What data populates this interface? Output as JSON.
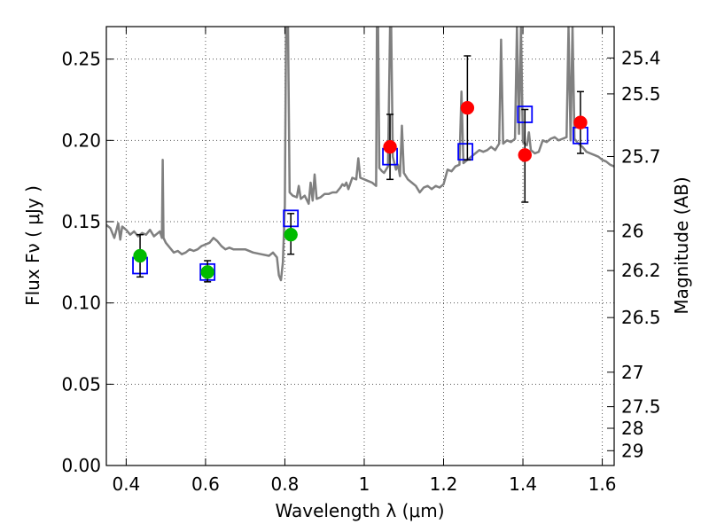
{
  "chart_data": {
    "type": "scatter",
    "title": "",
    "xlabel": "Wavelength  λ (μm)",
    "ylabel": "Flux  Fν  ( μJy )",
    "ylabel_right": "Magnitude (AB)",
    "xlim": [
      0.35,
      1.63
    ],
    "ylim": [
      0.0,
      0.27
    ],
    "grid": true,
    "grid_style": "dotted",
    "x_ticks": [
      0.4,
      0.6,
      0.8,
      1.0,
      1.2,
      1.4,
      1.6
    ],
    "x_tick_labels": [
      "0.4",
      "0.6",
      "0.8",
      "1",
      "1.2",
      "1.4",
      "1.6"
    ],
    "y_ticks": [
      0.0,
      0.05,
      0.1,
      0.15,
      0.2,
      0.25
    ],
    "y_tick_labels": [
      "0.00",
      "0.05",
      "0.10",
      "0.15",
      "0.20",
      "0.25"
    ],
    "right_axis": {
      "label": "Magnitude (AB)",
      "ticks": [
        {
          "text": "25.4",
          "flux": 0.2507
        },
        {
          "text": "25.5",
          "flux": 0.2286
        },
        {
          "text": "25.7",
          "flux": 0.1901
        },
        {
          "text": "26",
          "flux": 0.1442
        },
        {
          "text": "26.2",
          "flux": 0.1199
        },
        {
          "text": "26.5",
          "flux": 0.091
        },
        {
          "text": "27",
          "flux": 0.0574
        },
        {
          "text": "27.5",
          "flux": 0.0362
        },
        {
          "text": "28",
          "flux": 0.0229
        },
        {
          "text": "29",
          "flux": 0.0091
        }
      ]
    },
    "colors": {
      "spectrum": "#808080",
      "model_box": "#0000ff",
      "green_point": "#00bb00",
      "red_point": "#ff0000",
      "error_bar": "#000000",
      "grid": "#555555"
    },
    "series": [
      {
        "type": "line",
        "points": [
          [
            0.35,
            0.148
          ],
          [
            0.36,
            0.146
          ],
          [
            0.37,
            0.14
          ],
          [
            0.38,
            0.149
          ],
          [
            0.385,
            0.139
          ],
          [
            0.39,
            0.147
          ],
          [
            0.4,
            0.145
          ],
          [
            0.41,
            0.142
          ],
          [
            0.42,
            0.144
          ],
          [
            0.43,
            0.141
          ],
          [
            0.44,
            0.143
          ],
          [
            0.45,
            0.142
          ],
          [
            0.46,
            0.145
          ],
          [
            0.47,
            0.141
          ],
          [
            0.48,
            0.143
          ],
          [
            0.485,
            0.144
          ],
          [
            0.49,
            0.14
          ],
          [
            0.492,
            0.188
          ],
          [
            0.494,
            0.14
          ],
          [
            0.5,
            0.137
          ],
          [
            0.51,
            0.134
          ],
          [
            0.52,
            0.131
          ],
          [
            0.53,
            0.132
          ],
          [
            0.54,
            0.13
          ],
          [
            0.55,
            0.131
          ],
          [
            0.56,
            0.133
          ],
          [
            0.57,
            0.132
          ],
          [
            0.58,
            0.133
          ],
          [
            0.59,
            0.135
          ],
          [
            0.6,
            0.136
          ],
          [
            0.61,
            0.137
          ],
          [
            0.62,
            0.14
          ],
          [
            0.63,
            0.138
          ],
          [
            0.64,
            0.135
          ],
          [
            0.65,
            0.133
          ],
          [
            0.66,
            0.134
          ],
          [
            0.67,
            0.133
          ],
          [
            0.68,
            0.133
          ],
          [
            0.7,
            0.133
          ],
          [
            0.72,
            0.131
          ],
          [
            0.74,
            0.13
          ],
          [
            0.76,
            0.129
          ],
          [
            0.77,
            0.131
          ],
          [
            0.78,
            0.128
          ],
          [
            0.785,
            0.117
          ],
          [
            0.79,
            0.114
          ],
          [
            0.795,
            0.125
          ],
          [
            0.8,
            0.16
          ],
          [
            0.803,
            0.27
          ],
          [
            0.805,
            0.27
          ],
          [
            0.808,
            0.27
          ],
          [
            0.812,
            0.168
          ],
          [
            0.82,
            0.166
          ],
          [
            0.83,
            0.165
          ],
          [
            0.835,
            0.172
          ],
          [
            0.84,
            0.164
          ],
          [
            0.85,
            0.166
          ],
          [
            0.86,
            0.161
          ],
          [
            0.865,
            0.174
          ],
          [
            0.87,
            0.163
          ],
          [
            0.875,
            0.179
          ],
          [
            0.88,
            0.164
          ],
          [
            0.89,
            0.165
          ],
          [
            0.9,
            0.167
          ],
          [
            0.91,
            0.167
          ],
          [
            0.92,
            0.168
          ],
          [
            0.93,
            0.168
          ],
          [
            0.94,
            0.171
          ],
          [
            0.945,
            0.173
          ],
          [
            0.95,
            0.172
          ],
          [
            0.955,
            0.174
          ],
          [
            0.96,
            0.17
          ],
          [
            0.97,
            0.177
          ],
          [
            0.98,
            0.176
          ],
          [
            0.985,
            0.189
          ],
          [
            0.99,
            0.177
          ],
          [
            1.0,
            0.176
          ],
          [
            1.01,
            0.175
          ],
          [
            1.02,
            0.174
          ],
          [
            1.03,
            0.172
          ],
          [
            1.032,
            0.27
          ],
          [
            1.035,
            0.27
          ],
          [
            1.038,
            0.183
          ],
          [
            1.045,
            0.181
          ],
          [
            1.05,
            0.18
          ],
          [
            1.06,
            0.184
          ],
          [
            1.065,
            0.27
          ],
          [
            1.068,
            0.27
          ],
          [
            1.072,
            0.19
          ],
          [
            1.08,
            0.182
          ],
          [
            1.085,
            0.185
          ],
          [
            1.09,
            0.178
          ],
          [
            1.095,
            0.209
          ],
          [
            1.1,
            0.18
          ],
          [
            1.11,
            0.176
          ],
          [
            1.12,
            0.174
          ],
          [
            1.13,
            0.172
          ],
          [
            1.14,
            0.168
          ],
          [
            1.15,
            0.171
          ],
          [
            1.16,
            0.172
          ],
          [
            1.17,
            0.17
          ],
          [
            1.18,
            0.172
          ],
          [
            1.19,
            0.171
          ],
          [
            1.2,
            0.173
          ],
          [
            1.21,
            0.182
          ],
          [
            1.22,
            0.181
          ],
          [
            1.23,
            0.184
          ],
          [
            1.24,
            0.185
          ],
          [
            1.245,
            0.23
          ],
          [
            1.25,
            0.186
          ],
          [
            1.26,
            0.188
          ],
          [
            1.27,
            0.19
          ],
          [
            1.28,
            0.192
          ],
          [
            1.29,
            0.194
          ],
          [
            1.3,
            0.193
          ],
          [
            1.31,
            0.194
          ],
          [
            1.32,
            0.196
          ],
          [
            1.33,
            0.194
          ],
          [
            1.34,
            0.198
          ],
          [
            1.345,
            0.262
          ],
          [
            1.35,
            0.198
          ],
          [
            1.36,
            0.2
          ],
          [
            1.37,
            0.199
          ],
          [
            1.38,
            0.201
          ],
          [
            1.385,
            0.27
          ],
          [
            1.39,
            0.204
          ],
          [
            1.395,
            0.27
          ],
          [
            1.4,
            0.199
          ],
          [
            1.41,
            0.197
          ],
          [
            1.415,
            0.205
          ],
          [
            1.42,
            0.194
          ],
          [
            1.43,
            0.192
          ],
          [
            1.44,
            0.193
          ],
          [
            1.45,
            0.2
          ],
          [
            1.46,
            0.199
          ],
          [
            1.47,
            0.201
          ],
          [
            1.48,
            0.202
          ],
          [
            1.49,
            0.2
          ],
          [
            1.5,
            0.201
          ],
          [
            1.51,
            0.202
          ],
          [
            1.515,
            0.27
          ],
          [
            1.52,
            0.2
          ],
          [
            1.525,
            0.27
          ],
          [
            1.53,
            0.201
          ],
          [
            1.54,
            0.198
          ],
          [
            1.55,
            0.196
          ],
          [
            1.56,
            0.193
          ],
          [
            1.57,
            0.192
          ],
          [
            1.58,
            0.191
          ],
          [
            1.59,
            0.19
          ],
          [
            1.6,
            0.188
          ],
          [
            1.61,
            0.187
          ],
          [
            1.62,
            0.185
          ],
          [
            1.63,
            0.184
          ]
        ]
      },
      {
        "type": "model_boxes",
        "x": [
          0.435,
          0.605,
          0.815,
          1.065,
          1.255,
          1.405,
          1.545
        ],
        "y": [
          0.123,
          0.119,
          0.152,
          0.19,
          0.193,
          0.216,
          0.203
        ]
      },
      {
        "type": "points",
        "color": "green",
        "x": [
          0.435,
          0.605,
          0.815
        ],
        "y": [
          0.129,
          0.119,
          0.142
        ],
        "yerr_low": [
          0.116,
          0.113,
          0.13
        ],
        "yerr_high": [
          0.142,
          0.126,
          0.155
        ]
      },
      {
        "type": "points",
        "color": "red",
        "x": [
          1.065,
          1.26,
          1.405,
          1.545
        ],
        "y": [
          0.196,
          0.22,
          0.191,
          0.211
        ],
        "yerr_low": [
          0.176,
          0.188,
          0.162,
          0.192
        ],
        "yerr_high": [
          0.216,
          0.252,
          0.219,
          0.23
        ]
      }
    ]
  }
}
